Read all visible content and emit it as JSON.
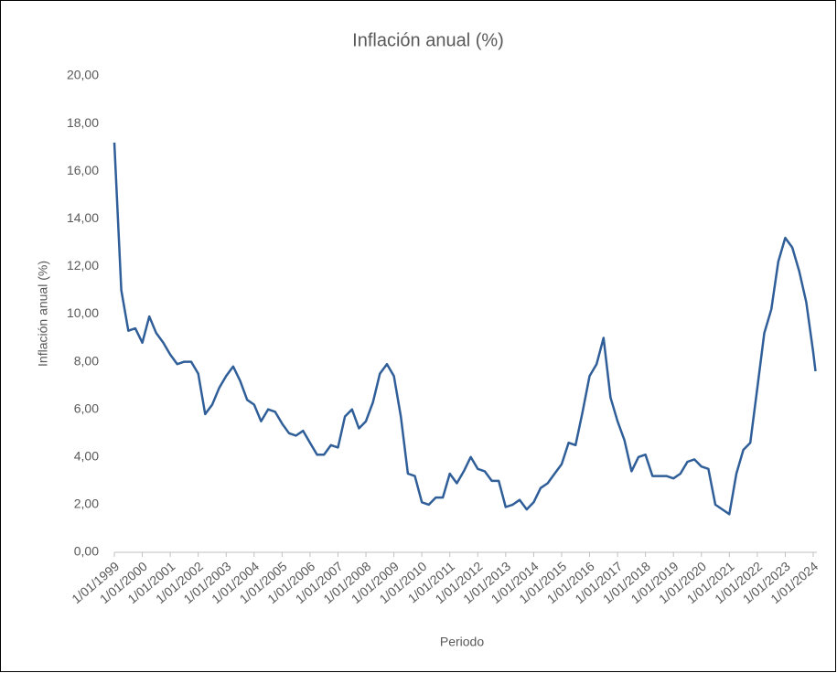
{
  "chart_data": {
    "type": "line",
    "title": "Inflación anual (%)",
    "x_label": "Periodo",
    "y_label": "Inflación anual (%)",
    "color": "#2f5e98",
    "x": [
      "1/01/1999",
      "1/04/1999",
      "1/07/1999",
      "1/10/1999",
      "1/01/2000",
      "1/04/2000",
      "1/07/2000",
      "1/10/2000",
      "1/01/2001",
      "1/04/2001",
      "1/07/2001",
      "1/10/2001",
      "1/01/2002",
      "1/04/2002",
      "1/07/2002",
      "1/10/2002",
      "1/01/2003",
      "1/04/2003",
      "1/07/2003",
      "1/10/2003",
      "1/01/2004",
      "1/04/2004",
      "1/07/2004",
      "1/10/2004",
      "1/01/2005",
      "1/04/2005",
      "1/07/2005",
      "1/10/2005",
      "1/01/2006",
      "1/04/2006",
      "1/07/2006",
      "1/10/2006",
      "1/01/2007",
      "1/04/2007",
      "1/07/2007",
      "1/10/2007",
      "1/01/2008",
      "1/04/2008",
      "1/07/2008",
      "1/10/2008",
      "1/01/2009",
      "1/04/2009",
      "1/07/2009",
      "1/10/2009",
      "1/01/2010",
      "1/04/2010",
      "1/07/2010",
      "1/10/2010",
      "1/01/2011",
      "1/04/2011",
      "1/07/2011",
      "1/10/2011",
      "1/01/2012",
      "1/04/2012",
      "1/07/2012",
      "1/10/2012",
      "1/01/2013",
      "1/04/2013",
      "1/07/2013",
      "1/10/2013",
      "1/01/2014",
      "1/04/2014",
      "1/07/2014",
      "1/10/2014",
      "1/01/2015",
      "1/04/2015",
      "1/07/2015",
      "1/10/2015",
      "1/01/2016",
      "1/04/2016",
      "1/07/2016",
      "1/10/2016",
      "1/01/2017",
      "1/04/2017",
      "1/07/2017",
      "1/10/2017",
      "1/01/2018",
      "1/04/2018",
      "1/07/2018",
      "1/10/2018",
      "1/01/2019",
      "1/04/2019",
      "1/07/2019",
      "1/10/2019",
      "1/01/2020",
      "1/04/2020",
      "1/07/2020",
      "1/10/2020",
      "1/01/2021",
      "1/04/2021",
      "1/07/2021",
      "1/10/2021",
      "1/01/2022",
      "1/04/2022",
      "1/07/2022",
      "1/10/2022",
      "1/01/2023",
      "1/04/2023",
      "1/07/2023",
      "1/10/2023",
      "1/01/2024",
      "1/02/2024"
    ],
    "values": [
      17.2,
      11.0,
      9.3,
      9.4,
      8.8,
      9.9,
      9.2,
      8.8,
      8.3,
      7.9,
      8.0,
      8.0,
      7.5,
      5.8,
      6.2,
      6.9,
      7.4,
      7.8,
      7.2,
      6.4,
      6.2,
      5.5,
      6.0,
      5.9,
      5.4,
      5.0,
      4.9,
      5.1,
      4.6,
      4.1,
      4.1,
      4.5,
      4.4,
      5.7,
      6.0,
      5.2,
      5.5,
      6.3,
      7.5,
      7.9,
      7.4,
      5.7,
      3.3,
      3.2,
      2.1,
      2.0,
      2.3,
      2.3,
      3.3,
      2.9,
      3.4,
      4.0,
      3.5,
      3.4,
      3.0,
      3.0,
      1.9,
      2.0,
      2.2,
      1.8,
      2.1,
      2.7,
      2.9,
      3.3,
      3.7,
      4.6,
      4.5,
      5.9,
      7.4,
      7.9,
      9.0,
      6.5,
      5.5,
      4.7,
      3.4,
      4.0,
      4.1,
      3.2,
      3.2,
      3.2,
      3.1,
      3.3,
      3.8,
      3.9,
      3.6,
      3.5,
      2.0,
      1.8,
      1.6,
      3.3,
      4.3,
      4.6,
      6.9,
      9.2,
      10.2,
      12.2,
      13.2,
      12.8,
      11.8,
      10.5,
      8.4,
      7.6
    ],
    "xticks": [
      "1/01/1999",
      "1/01/2000",
      "1/01/2001",
      "1/01/2002",
      "1/01/2003",
      "1/01/2004",
      "1/01/2005",
      "1/01/2006",
      "1/01/2007",
      "1/01/2008",
      "1/01/2009",
      "1/01/2010",
      "1/01/2011",
      "1/01/2012",
      "1/01/2013",
      "1/01/2014",
      "1/01/2015",
      "1/01/2016",
      "1/01/2017",
      "1/01/2018",
      "1/01/2019",
      "1/01/2020",
      "1/01/2021",
      "1/01/2022",
      "1/01/2023",
      "1/01/2024"
    ],
    "ylim": [
      0,
      20
    ],
    "yticks": [
      {
        "value": 0,
        "label": "0,00"
      },
      {
        "value": 2,
        "label": "2,00"
      },
      {
        "value": 4,
        "label": "4,00"
      },
      {
        "value": 6,
        "label": "6,00"
      },
      {
        "value": 8,
        "label": "8,00"
      },
      {
        "value": 10,
        "label": "10,00"
      },
      {
        "value": 12,
        "label": "12,00"
      },
      {
        "value": 14,
        "label": "14,00"
      },
      {
        "value": 16,
        "label": "16,00"
      },
      {
        "value": 18,
        "label": "18,00"
      },
      {
        "value": 20,
        "label": "20,00"
      }
    ],
    "grid": false
  }
}
